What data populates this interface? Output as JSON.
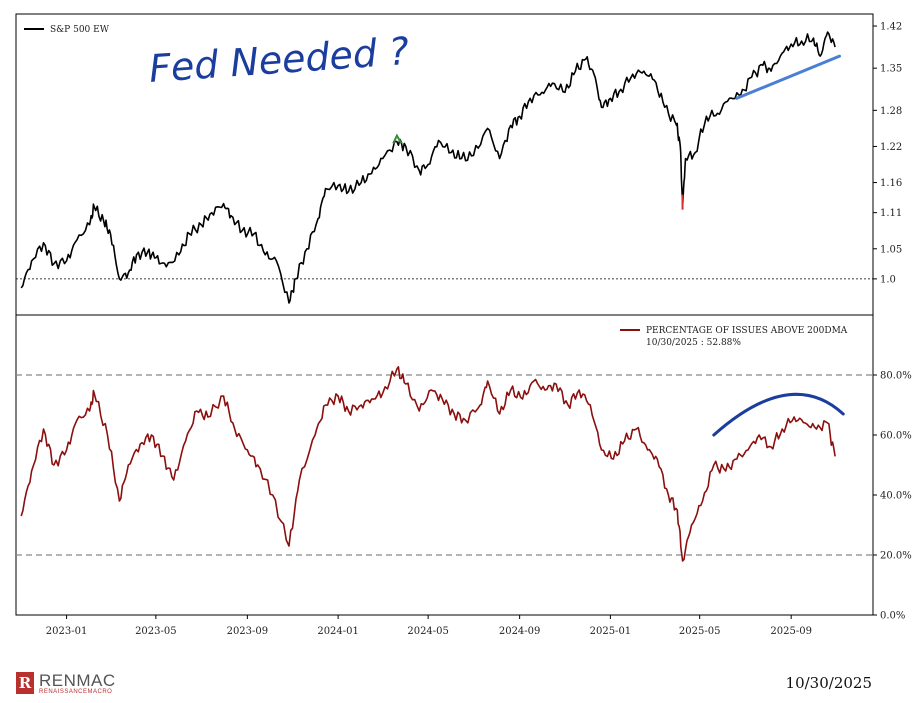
{
  "chart_data": [
    {
      "type": "line",
      "title": "",
      "series": [
        {
          "name": "S&P 500 EW",
          "color": "#000000",
          "points": [
            [
              "2022-11-01",
              0.985
            ],
            [
              "2022-11-15",
              1.03
            ],
            [
              "2022-12-01",
              1.06
            ],
            [
              "2022-12-15",
              1.025
            ],
            [
              "2023-01-01",
              1.03
            ],
            [
              "2023-01-15",
              1.065
            ],
            [
              "2023-02-01",
              1.09
            ],
            [
              "2023-02-07",
              1.12
            ],
            [
              "2023-02-20",
              1.095
            ],
            [
              "2023-03-01",
              1.075
            ],
            [
              "2023-03-13",
              1.0
            ],
            [
              "2023-03-25",
              1.01
            ],
            [
              "2023-04-05",
              1.04
            ],
            [
              "2023-04-20",
              1.045
            ],
            [
              "2023-05-01",
              1.035
            ],
            [
              "2023-05-15",
              1.02
            ],
            [
              "2023-06-01",
              1.04
            ],
            [
              "2023-06-15",
              1.075
            ],
            [
              "2023-07-01",
              1.09
            ],
            [
              "2023-07-15",
              1.11
            ],
            [
              "2023-07-31",
              1.125
            ],
            [
              "2023-08-10",
              1.105
            ],
            [
              "2023-08-25",
              1.08
            ],
            [
              "2023-09-10",
              1.075
            ],
            [
              "2023-09-25",
              1.04
            ],
            [
              "2023-10-10",
              1.03
            ],
            [
              "2023-10-27",
              0.96
            ],
            [
              "2023-11-05",
              1.0
            ],
            [
              "2023-11-20",
              1.05
            ],
            [
              "2023-12-05",
              1.1
            ],
            [
              "2023-12-15",
              1.15
            ],
            [
              "2024-01-01",
              1.155
            ],
            [
              "2024-01-15",
              1.145
            ],
            [
              "2024-02-01",
              1.16
            ],
            [
              "2024-02-15",
              1.175
            ],
            [
              "2024-03-01",
              1.2
            ],
            [
              "2024-03-20",
              1.228
            ],
            [
              "2024-04-01",
              1.22
            ],
            [
              "2024-04-19",
              1.18
            ],
            [
              "2024-05-01",
              1.19
            ],
            [
              "2024-05-15",
              1.23
            ],
            [
              "2024-06-01",
              1.21
            ],
            [
              "2024-06-15",
              1.2
            ],
            [
              "2024-07-01",
              1.205
            ],
            [
              "2024-07-20",
              1.25
            ],
            [
              "2024-08-05",
              1.2
            ],
            [
              "2024-08-20",
              1.255
            ],
            [
              "2024-09-01",
              1.27
            ],
            [
              "2024-09-15",
              1.3
            ],
            [
              "2024-10-01",
              1.31
            ],
            [
              "2024-10-15",
              1.325
            ],
            [
              "2024-11-01",
              1.31
            ],
            [
              "2024-11-15",
              1.345
            ],
            [
              "2024-11-29",
              1.365
            ],
            [
              "2024-12-10",
              1.34
            ],
            [
              "2024-12-20",
              1.285
            ],
            [
              "2025-01-01",
              1.3
            ],
            [
              "2025-01-15",
              1.315
            ],
            [
              "2025-01-31",
              1.34
            ],
            [
              "2025-02-15",
              1.345
            ],
            [
              "2025-03-01",
              1.33
            ],
            [
              "2025-03-15",
              1.285
            ],
            [
              "2025-03-31",
              1.255
            ],
            [
              "2025-04-05",
              1.22
            ],
            [
              "2025-04-08",
              1.12
            ],
            [
              "2025-04-12",
              1.2
            ],
            [
              "2025-04-25",
              1.21
            ],
            [
              "2025-05-10",
              1.27
            ],
            [
              "2025-05-25",
              1.275
            ],
            [
              "2025-06-10",
              1.3
            ],
            [
              "2025-06-25",
              1.305
            ],
            [
              "2025-07-10",
              1.335
            ],
            [
              "2025-07-25",
              1.355
            ],
            [
              "2025-08-05",
              1.345
            ],
            [
              "2025-08-20",
              1.375
            ],
            [
              "2025-09-01",
              1.39
            ],
            [
              "2025-09-15",
              1.395
            ],
            [
              "2025-10-01",
              1.4
            ],
            [
              "2025-10-10",
              1.37
            ],
            [
              "2025-10-20",
              1.41
            ],
            [
              "2025-10-30",
              1.385
            ]
          ]
        }
      ],
      "y_ticks": [
        "1.42",
        "1.35",
        "1.28",
        "1.22",
        "1.16",
        "1.11",
        "1.05",
        "1.0"
      ],
      "ylim": [
        0.94,
        1.44
      ],
      "reference_lines": [
        1.0
      ],
      "legend_position": "top-left",
      "annotations": {
        "handwritten_text": "Fed Needed ?",
        "trendline": {
          "color": "#4a7fd4",
          "from": [
            "2025-06-20",
            1.3
          ],
          "to": [
            "2025-11-05",
            1.37
          ]
        },
        "peak_marker_color": "#3a8a3a",
        "trough_marker_color": "#d63030"
      }
    },
    {
      "type": "line",
      "series": [
        {
          "name": "PERCENTAGE OF ISSUES ABOVE 200DMA",
          "color": "#8b0f0f",
          "points": [
            [
              "2022-11-01",
              33
            ],
            [
              "2022-11-15",
              48
            ],
            [
              "2022-12-01",
              62
            ],
            [
              "2022-12-15",
              50
            ],
            [
              "2023-01-01",
              55
            ],
            [
              "2023-01-15",
              65
            ],
            [
              "2023-02-01",
              68
            ],
            [
              "2023-02-07",
              74
            ],
            [
              "2023-02-25",
              60
            ],
            [
              "2023-03-13",
              38
            ],
            [
              "2023-03-25",
              50
            ],
            [
              "2023-04-10",
              57
            ],
            [
              "2023-04-25",
              60
            ],
            [
              "2023-05-10",
              53
            ],
            [
              "2023-05-25",
              45
            ],
            [
              "2023-06-10",
              58
            ],
            [
              "2023-06-25",
              68
            ],
            [
              "2023-07-10",
              66
            ],
            [
              "2023-07-31",
              73
            ],
            [
              "2023-08-15",
              62
            ],
            [
              "2023-09-01",
              55
            ],
            [
              "2023-09-15",
              50
            ],
            [
              "2023-10-05",
              40
            ],
            [
              "2023-10-27",
              23
            ],
            [
              "2023-11-10",
              45
            ],
            [
              "2023-12-01",
              60
            ],
            [
              "2023-12-15",
              70
            ],
            [
              "2024-01-01",
              73
            ],
            [
              "2024-01-15",
              68
            ],
            [
              "2024-02-01",
              70
            ],
            [
              "2024-02-15",
              72
            ],
            [
              "2024-03-01",
              74
            ],
            [
              "2024-03-20",
              82
            ],
            [
              "2024-04-01",
              77
            ],
            [
              "2024-04-19",
              68
            ],
            [
              "2024-05-05",
              75
            ],
            [
              "2024-05-20",
              72
            ],
            [
              "2024-06-05",
              67
            ],
            [
              "2024-06-20",
              65
            ],
            [
              "2024-07-10",
              70
            ],
            [
              "2024-07-20",
              78
            ],
            [
              "2024-08-05",
              67
            ],
            [
              "2024-08-20",
              75
            ],
            [
              "2024-09-05",
              72
            ],
            [
              "2024-09-20",
              78
            ],
            [
              "2024-10-05",
              75
            ],
            [
              "2024-10-20",
              77
            ],
            [
              "2024-11-05",
              70
            ],
            [
              "2024-11-20",
              75
            ],
            [
              "2024-12-05",
              70
            ],
            [
              "2024-12-20",
              55
            ],
            [
              "2025-01-05",
              52
            ],
            [
              "2025-01-20",
              58
            ],
            [
              "2025-02-05",
              62
            ],
            [
              "2025-02-20",
              55
            ],
            [
              "2025-03-05",
              52
            ],
            [
              "2025-03-20",
              40
            ],
            [
              "2025-04-01",
              35
            ],
            [
              "2025-04-08",
              18
            ],
            [
              "2025-04-20",
              30
            ],
            [
              "2025-05-05",
              38
            ],
            [
              "2025-05-20",
              50
            ],
            [
              "2025-06-05",
              48
            ],
            [
              "2025-06-20",
              52
            ],
            [
              "2025-07-05",
              55
            ],
            [
              "2025-07-20",
              60
            ],
            [
              "2025-08-05",
              56
            ],
            [
              "2025-08-20",
              62
            ],
            [
              "2025-09-05",
              66
            ],
            [
              "2025-09-20",
              64
            ],
            [
              "2025-10-05",
              62
            ],
            [
              "2025-10-20",
              64
            ],
            [
              "2025-10-30",
              52.88
            ]
          ]
        }
      ],
      "legend_label": "10/30/2025 : 52.88%",
      "y_ticks": [
        "80.0%",
        "60.0%",
        "40.0%",
        "20.0%",
        "0.0%"
      ],
      "ylim": [
        0,
        100
      ],
      "reference_lines": [
        80,
        20
      ],
      "legend_position": "top-right",
      "annotations": {
        "arc_color": "#1a3d9e",
        "arc_from": [
          "2025-05-20",
          60
        ],
        "arc_peak": [
          "2025-09-01",
          73
        ],
        "arc_to": [
          "2025-11-10",
          67
        ]
      }
    }
  ],
  "x_axis": {
    "ticks": [
      "2023-01",
      "2023-05",
      "2023-09",
      "2024-01",
      "2024-05",
      "2024-09",
      "2025-01",
      "2025-05",
      "2025-09"
    ],
    "range": [
      "2022-10-25",
      "2025-12-20"
    ]
  },
  "footer": {
    "brand": "RENMAC",
    "brand_sub": "RENAISSANCEMACRO",
    "brand_mark": "R",
    "date": "10/30/2025"
  }
}
